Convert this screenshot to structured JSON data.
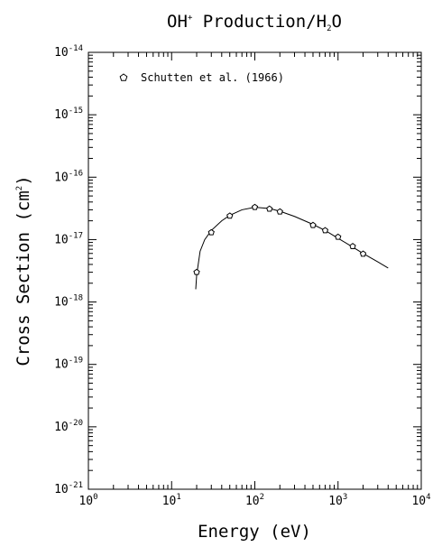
{
  "chart_data": {
    "type": "scatter",
    "title_main": "OH",
    "title_sup": "+",
    "title_mid": " Production/H",
    "title_sub": "2",
    "title_end": "O",
    "xlabel": "Energy (eV)",
    "ylabel_main": "Cross Section (cm",
    "ylabel_sup": "2",
    "ylabel_end": ")",
    "x_scale": "log",
    "y_scale": "log",
    "xlim": [
      1,
      10000
    ],
    "ylim": [
      1e-21,
      1e-14
    ],
    "x_tick_base": "10",
    "x_tick_exponents": [
      "0",
      "1",
      "2",
      "3",
      "4"
    ],
    "y_tick_base": "10",
    "y_tick_exponents": [
      "-21",
      "-20",
      "-19",
      "-18",
      "-17",
      "-16",
      "-15",
      "-14"
    ],
    "grid": false,
    "legend_position": "top-left",
    "series": [
      {
        "name": "Schutten et al. (1966)",
        "marker": "pentagon",
        "x": [
          20,
          30,
          50,
          100,
          150,
          200,
          500,
          700,
          1000,
          1500,
          2000
        ],
        "y": [
          3e-18,
          1.3e-17,
          2.4e-17,
          3.3e-17,
          3.1e-17,
          2.8e-17,
          1.7e-17,
          1.4e-17,
          1.1e-17,
          7.8e-18,
          5.9e-18
        ]
      }
    ],
    "fit_curve": {
      "x": [
        19.5,
        20,
        22,
        25,
        30,
        40,
        50,
        70,
        100,
        150,
        200,
        300,
        500,
        700,
        1000,
        1500,
        2000,
        3000,
        4000
      ],
      "y": [
        1.6e-18,
        2.7e-18,
        6.5e-18,
        1e-17,
        1.4e-17,
        2e-17,
        2.45e-17,
        3e-17,
        3.3e-17,
        3.15e-17,
        2.85e-17,
        2.35e-17,
        1.75e-17,
        1.4e-17,
        1.05e-17,
        7.6e-18,
        6e-18,
        4.4e-18,
        3.5e-18
      ]
    }
  }
}
